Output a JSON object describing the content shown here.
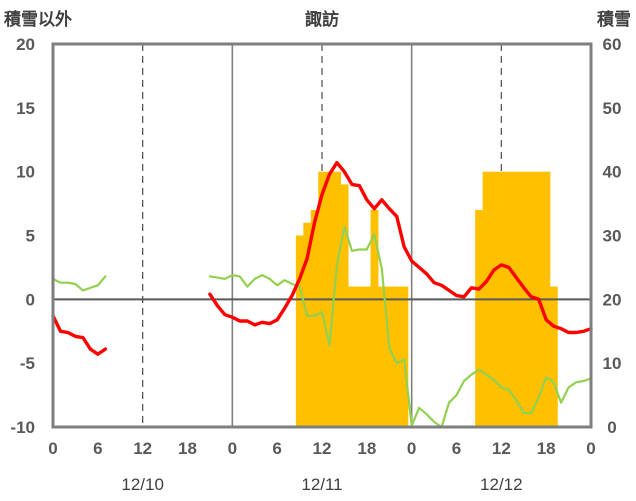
{
  "chart_data": {
    "type": "line",
    "title": "諏訪",
    "left_axis_label": "積雪以外",
    "right_axis_label": "積雪",
    "y_left": {
      "range": [
        -10,
        20
      ],
      "ticks": [
        "-10",
        "-5",
        "0",
        "5",
        "10",
        "15",
        "20"
      ]
    },
    "y_right": {
      "range": [
        0,
        60
      ],
      "ticks": [
        "0",
        "10",
        "20",
        "30",
        "40",
        "50",
        "60"
      ]
    },
    "x_hours": {
      "range": [
        0,
        72
      ],
      "ticks": [
        "0",
        "6",
        "12",
        "18",
        "0",
        "6",
        "12",
        "18",
        "0",
        "6",
        "12",
        "18",
        "0"
      ]
    },
    "dates": [
      "12/10",
      "12/11",
      "12/12"
    ],
    "grid": "dashed vertical lines at hours 12, 36, 60; solid day separators at 24 and 48",
    "colors": {
      "snow_depth": "#ffc000",
      "temperature": "#ff0000",
      "wind": "#92d050",
      "precip": "#7030a0",
      "frame": "#7f7f7f",
      "zero_line": "#595959"
    },
    "series": [
      {
        "key": "snow_depth",
        "axis": "right",
        "kind": "bar",
        "x": [
          33,
          34,
          35,
          36,
          37,
          38,
          39,
          40,
          41,
          42,
          43,
          44,
          45,
          46,
          47,
          57,
          58,
          59,
          60,
          61,
          62,
          63,
          64,
          65,
          66,
          67
        ],
        "values": [
          30,
          32,
          34,
          40,
          40,
          40,
          38,
          22,
          22,
          22,
          34,
          22,
          22,
          22,
          22,
          34,
          40,
          40,
          40,
          40,
          40,
          40,
          40,
          40,
          40,
          22
        ]
      },
      {
        "key": "temperature",
        "axis": "left",
        "kind": "line",
        "segments": [
          {
            "x": [
              0,
              1,
              2,
              3,
              4,
              5,
              6,
              7
            ],
            "y": [
              -1.3,
              -2.5,
              -2.6,
              -2.9,
              -3.0,
              -3.9,
              -4.3,
              -3.9
            ]
          },
          {
            "x": [
              21,
              22,
              23,
              24,
              25,
              26,
              27,
              28,
              29,
              30,
              31,
              32,
              33,
              34,
              35,
              36,
              37,
              38,
              39,
              40,
              41,
              42,
              43,
              44,
              45,
              46,
              47,
              48,
              49,
              50,
              51,
              52,
              53,
              54,
              55,
              56,
              57,
              58,
              59,
              60,
              61,
              62,
              63,
              64,
              65,
              66,
              67,
              68,
              69,
              70,
              71,
              72
            ],
            "y": [
              0.4,
              -0.5,
              -1.2,
              -1.4,
              -1.7,
              -1.7,
              -2.0,
              -1.8,
              -1.9,
              -1.6,
              -0.7,
              0.3,
              1.6,
              3.2,
              6.0,
              8.2,
              9.8,
              10.7,
              10.0,
              9.0,
              8.9,
              7.8,
              7.1,
              7.8,
              7.1,
              6.5,
              4.1,
              3.0,
              2.5,
              2.0,
              1.3,
              1.1,
              0.7,
              0.3,
              0.2,
              0.9,
              0.8,
              1.4,
              2.3,
              2.7,
              2.5,
              1.7,
              0.9,
              0.2,
              0.0,
              -1.6,
              -2.1,
              -2.3,
              -2.6,
              -2.6,
              -2.5,
              -2.3
            ]
          }
        ]
      },
      {
        "key": "wind",
        "axis": "left",
        "kind": "line",
        "segments": [
          {
            "x": [
              0,
              1,
              2,
              3,
              4,
              5,
              6,
              7
            ],
            "y": [
              1.6,
              1.3,
              1.3,
              1.2,
              0.7,
              0.9,
              1.1,
              1.8
            ]
          },
          {
            "x": [
              21,
              22,
              23,
              24,
              25,
              26,
              27,
              28,
              29,
              30,
              31,
              32,
              33,
              34,
              35,
              36,
              37,
              38,
              39,
              40,
              41,
              42,
              43,
              44,
              45,
              46,
              47,
              48,
              49,
              50,
              51,
              52,
              53,
              54,
              55,
              56,
              57,
              58,
              59,
              60,
              61,
              62,
              63,
              64,
              65,
              66,
              67,
              68,
              69,
              70,
              71,
              72
            ],
            "y": [
              1.8,
              1.7,
              1.6,
              1.9,
              1.8,
              1.0,
              1.6,
              1.9,
              1.6,
              1.1,
              1.5,
              1.2,
              1.0,
              -1.3,
              -1.3,
              -1.0,
              -3.6,
              2.7,
              5.7,
              3.8,
              3.9,
              3.9,
              5.1,
              2.4,
              -3.8,
              -5.0,
              -4.7,
              -9.9,
              -8.5,
              -9.0,
              -9.6,
              -10.0,
              -8.1,
              -7.5,
              -6.4,
              -5.9,
              -5.5,
              -5.9,
              -6.3,
              -6.9,
              -7.1,
              -7.9,
              -8.9,
              -8.9,
              -7.7,
              -6.1,
              -6.5,
              -8.1,
              -6.9,
              -6.5,
              -6.4,
              -6.2
            ]
          }
        ]
      },
      {
        "key": "precip",
        "axis": "left",
        "kind": "line",
        "segments": [
          {
            "x": [
              0,
              7
            ],
            "y": [
              -10,
              -10
            ]
          },
          {
            "x": [
              21,
              72
            ],
            "y": [
              -10,
              -10
            ]
          }
        ]
      }
    ]
  }
}
